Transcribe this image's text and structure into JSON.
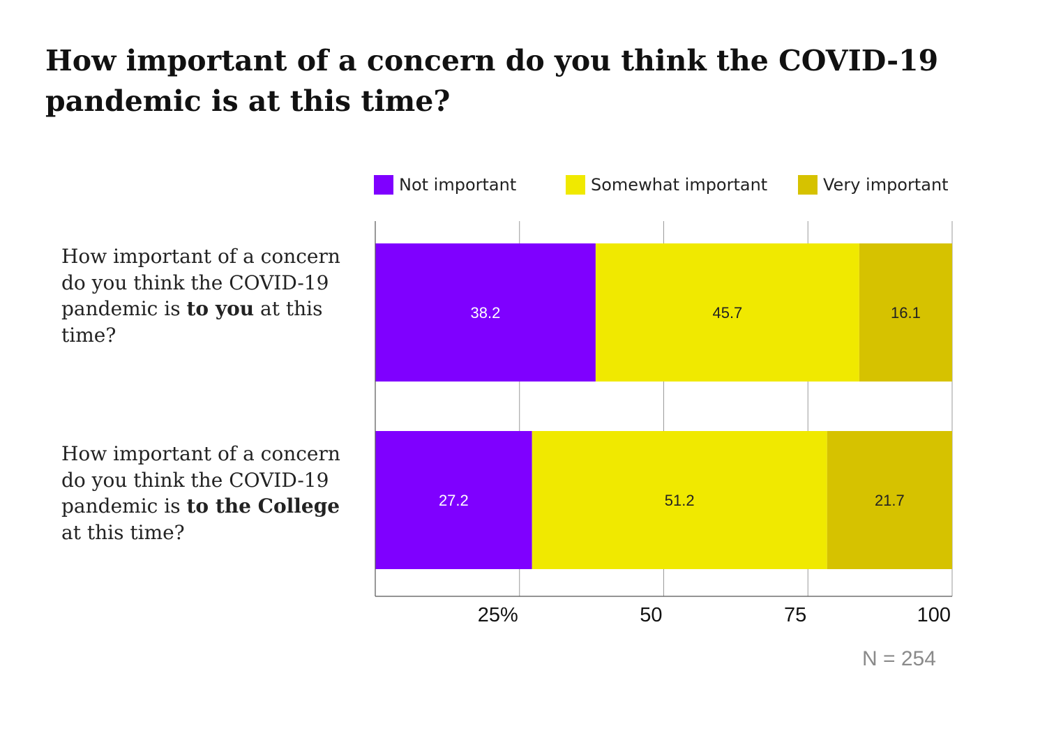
{
  "title": {
    "line1": "How important of a concern do you think the COVID-19",
    "line2": "pandemic is at this time?"
  },
  "legend": [
    {
      "label": "Not important",
      "color": "#7f00ff"
    },
    {
      "label": "Somewhat important",
      "color": "#f0e900"
    },
    {
      "label": "Very important",
      "color": "#d6c200"
    }
  ],
  "categories": [
    {
      "lines": [
        {
          "pre": "How important of a concern",
          "bold": "",
          "post": ""
        },
        {
          "pre": "do you think the COVID-19",
          "bold": "",
          "post": ""
        },
        {
          "pre": "pandemic is ",
          "bold": "to you",
          "post": " at this"
        },
        {
          "pre": "time?",
          "bold": "",
          "post": ""
        }
      ]
    },
    {
      "lines": [
        {
          "pre": "How important of a concern",
          "bold": "",
          "post": ""
        },
        {
          "pre": "do you think the COVID-19",
          "bold": "",
          "post": ""
        },
        {
          "pre": "pandemic is ",
          "bold": "to the College",
          "post": ""
        },
        {
          "pre": "at this time?",
          "bold": "",
          "post": ""
        }
      ]
    }
  ],
  "note": "N = 254",
  "chart_data": {
    "type": "bar",
    "orientation": "horizontal",
    "stacked": true,
    "title": "How important of a concern do you think the COVID-19 pandemic is at this time?",
    "categories": [
      "How important of a concern do you think the COVID-19 pandemic is to you at this time?",
      "How important of a concern do you think the COVID-19 pandemic is to the College at this time?"
    ],
    "series": [
      {
        "name": "Not important",
        "values": [
          38.2,
          27.2
        ],
        "color": "#7f00ff",
        "label_color": "#ffffff"
      },
      {
        "name": "Somewhat important",
        "values": [
          45.7,
          51.2
        ],
        "color": "#f0e900",
        "label_color": "#222222"
      },
      {
        "name": "Very important",
        "values": [
          16.1,
          21.7
        ],
        "color": "#d6c200",
        "label_color": "#222222"
      }
    ],
    "xlim": [
      0,
      100
    ],
    "xticks": [
      25,
      50,
      75,
      100
    ],
    "xtick_labels": [
      "25%",
      "50",
      "75",
      "100"
    ],
    "grid": true,
    "legend_position": "top"
  }
}
